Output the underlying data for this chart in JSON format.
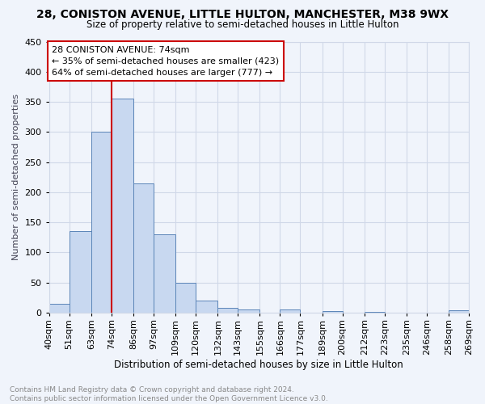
{
  "title": "28, CONISTON AVENUE, LITTLE HULTON, MANCHESTER, M38 9WX",
  "subtitle": "Size of property relative to semi-detached houses in Little Hulton",
  "xlabel": "Distribution of semi-detached houses by size in Little Hulton",
  "ylabel": "Number of semi-detached properties",
  "footer_line1": "Contains HM Land Registry data © Crown copyright and database right 2024.",
  "footer_line2": "Contains public sector information licensed under the Open Government Licence v3.0.",
  "annotation_title": "28 CONISTON AVENUE: 74sqm",
  "annotation_line1": "← 35% of semi-detached houses are smaller (423)",
  "annotation_line2": "64% of semi-detached houses are larger (777) →",
  "subject_value": 74,
  "bar_left_edges": [
    40,
    51,
    63,
    74,
    86,
    97,
    109,
    120,
    132,
    143,
    155,
    166,
    177,
    189,
    200,
    212,
    223,
    235,
    246,
    258
  ],
  "bar_heights": [
    15,
    136,
    300,
    355,
    215,
    130,
    49,
    20,
    8,
    5,
    0,
    5,
    0,
    3,
    0,
    1,
    0,
    0,
    0,
    4
  ],
  "bar_color": "#c8d8f0",
  "bar_edge_color": "#5b85b8",
  "subject_line_color": "#cc0000",
  "annotation_box_color": "#cc0000",
  "grid_color": "#d0d8e8",
  "ylim": [
    0,
    450
  ],
  "yticks": [
    0,
    50,
    100,
    150,
    200,
    250,
    300,
    350,
    400,
    450
  ],
  "xtick_labels": [
    "40sqm",
    "51sqm",
    "63sqm",
    "74sqm",
    "86sqm",
    "97sqm",
    "109sqm",
    "120sqm",
    "132sqm",
    "143sqm",
    "155sqm",
    "166sqm",
    "177sqm",
    "189sqm",
    "200sqm",
    "212sqm",
    "223sqm",
    "235sqm",
    "246sqm",
    "258sqm",
    "269sqm"
  ],
  "bg_color": "#f0f4fb"
}
